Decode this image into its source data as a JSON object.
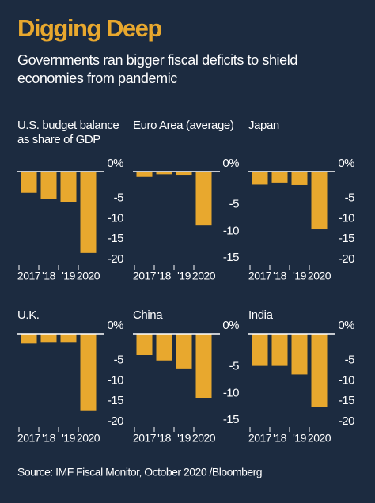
{
  "title": "Digging Deep",
  "subtitle": "Governments ran bigger fiscal deficits to shield economies from pandemic",
  "source": "Source: IMF Fiscal Monitor, October 2020 /Bloomberg",
  "chart_data": [
    {
      "type": "bar",
      "title": "U.S. budget balance as share of GDP",
      "categories": [
        "2017",
        "'18",
        "'19",
        "2020"
      ],
      "values": [
        -5.2,
        -6.8,
        -7.5,
        -20
      ],
      "color": "#e8a82e",
      "ylim": [
        -21,
        0
      ],
      "yticks": [
        {
          "value": 0,
          "label": "0%"
        },
        -5,
        -10,
        -15,
        -20
      ]
    },
    {
      "type": "bar",
      "title": "Euro Area (average)",
      "categories": [
        "2017",
        "'18",
        "'19",
        "2020"
      ],
      "values": [
        -1,
        -0.5,
        -0.6,
        -10.1
      ],
      "color": "#e8a82e",
      "ylim": [
        -16,
        0
      ],
      "yticks": [
        {
          "value": 0,
          "label": "0%"
        },
        -5,
        -10,
        -15
      ]
    },
    {
      "type": "bar",
      "title": "Japan",
      "categories": [
        "2017",
        "'18",
        "'19",
        "2020"
      ],
      "values": [
        -3.2,
        -2.7,
        -3.3,
        -14.2
      ],
      "color": "#e8a82e",
      "ylim": [
        -21,
        0
      ],
      "yticks": [
        {
          "value": 0,
          "label": "0%"
        },
        -5,
        -10,
        -15,
        -20
      ]
    },
    {
      "type": "bar",
      "title": "U.K.",
      "categories": [
        "2017",
        "'18",
        "'19",
        "2020"
      ],
      "values": [
        -2.4,
        -2.2,
        -2.2,
        -19
      ],
      "color": "#e8a82e",
      "ylim": [
        -21,
        0
      ],
      "yticks": [
        {
          "value": 0,
          "label": "0%"
        },
        -5,
        -10,
        -15,
        -20
      ]
    },
    {
      "type": "bar",
      "title": "China",
      "categories": [
        "2017",
        "'18",
        "'19",
        "2020"
      ],
      "values": [
        -4,
        -5,
        -6.5,
        -12
      ],
      "color": "#e8a82e",
      "ylim": [
        -16,
        0
      ],
      "yticks": [
        {
          "value": 0,
          "label": "0%"
        },
        -5,
        -10,
        -15
      ]
    },
    {
      "type": "bar",
      "title": "India",
      "categories": [
        "2017",
        "'18",
        "'19",
        "2020"
      ],
      "values": [
        -7.9,
        -7.9,
        -10,
        -17.9
      ],
      "color": "#e8a82e",
      "ylim": [
        -21,
        0
      ],
      "yticks": [
        {
          "value": 0,
          "label": "0%"
        },
        -5,
        -10,
        -15,
        -20
      ]
    }
  ]
}
